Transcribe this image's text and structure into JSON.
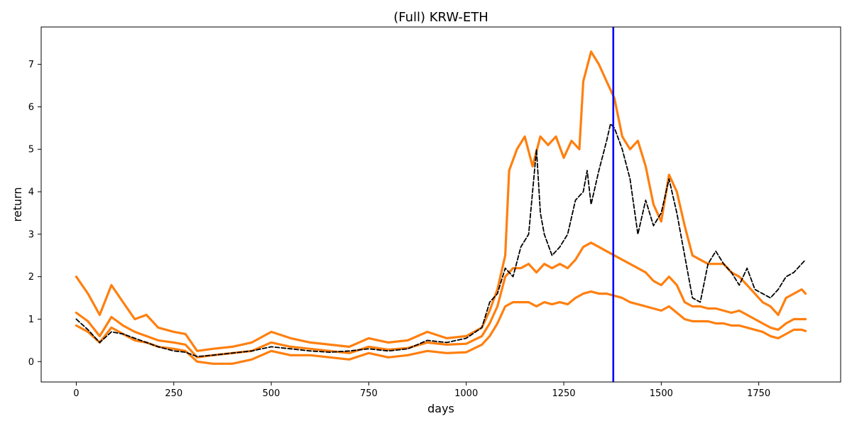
{
  "chart_data": {
    "type": "line",
    "title": "(Full) KRW-ETH",
    "xlabel": "days",
    "ylabel": "return",
    "xlim": [
      -90,
      1960
    ],
    "ylim": [
      -0.48,
      7.88
    ],
    "xticks": [
      0,
      250,
      500,
      750,
      1000,
      1250,
      1500,
      1750
    ],
    "yticks": [
      0,
      1,
      2,
      3,
      4,
      5,
      6,
      7
    ],
    "grid": false,
    "vline": {
      "x": 1377,
      "color": "#0000ff"
    },
    "colors": {
      "actual": "#000000",
      "band": "#ff7f0e"
    },
    "series": [
      {
        "style": "dashed",
        "color": "#000000",
        "x": [
          0,
          30,
          60,
          90,
          120,
          150,
          180,
          210,
          250,
          280,
          310,
          350,
          400,
          450,
          500,
          550,
          600,
          650,
          700,
          750,
          800,
          850,
          900,
          950,
          1000,
          1040,
          1060,
          1080,
          1100,
          1120,
          1140,
          1160,
          1180,
          1190,
          1200,
          1220,
          1240,
          1260,
          1280,
          1300,
          1310,
          1320,
          1340,
          1360,
          1370,
          1380,
          1400,
          1420,
          1440,
          1460,
          1480,
          1500,
          1520,
          1540,
          1560,
          1580,
          1600,
          1620,
          1640,
          1660,
          1680,
          1700,
          1720,
          1740,
          1760,
          1780,
          1800,
          1820,
          1840,
          1860,
          1870
        ],
        "y": [
          1.0,
          0.75,
          0.45,
          0.7,
          0.65,
          0.55,
          0.45,
          0.35,
          0.25,
          0.22,
          0.12,
          0.15,
          0.2,
          0.25,
          0.35,
          0.3,
          0.25,
          0.22,
          0.25,
          0.3,
          0.25,
          0.3,
          0.5,
          0.45,
          0.55,
          0.8,
          1.4,
          1.6,
          2.2,
          2.0,
          2.7,
          3.0,
          5.0,
          3.5,
          3.0,
          2.5,
          2.7,
          3.0,
          3.8,
          4.0,
          4.5,
          3.7,
          4.5,
          5.2,
          5.6,
          5.5,
          5.0,
          4.3,
          3.0,
          3.8,
          3.2,
          3.5,
          4.3,
          3.5,
          2.5,
          1.5,
          1.4,
          2.3,
          2.6,
          2.3,
          2.1,
          1.8,
          2.2,
          1.7,
          1.6,
          1.5,
          1.7,
          2.0,
          2.1,
          2.3,
          2.4
        ]
      },
      {
        "style": "solid",
        "color": "#ff7f0e",
        "x": [
          0,
          30,
          60,
          90,
          120,
          150,
          180,
          210,
          250,
          280,
          310,
          350,
          400,
          450,
          500,
          550,
          600,
          650,
          700,
          750,
          800,
          850,
          900,
          950,
          1000,
          1040,
          1060,
          1080,
          1100,
          1110,
          1130,
          1150,
          1170,
          1190,
          1210,
          1230,
          1250,
          1270,
          1290,
          1300,
          1320,
          1340,
          1360,
          1380,
          1400,
          1420,
          1440,
          1460,
          1480,
          1500,
          1520,
          1540,
          1560,
          1580,
          1600,
          1620,
          1640,
          1660,
          1680,
          1700,
          1720,
          1740,
          1760,
          1780,
          1800,
          1820,
          1840,
          1860,
          1870
        ],
        "y": [
          2.0,
          1.6,
          1.1,
          1.8,
          1.4,
          1.0,
          1.1,
          0.8,
          0.7,
          0.65,
          0.25,
          0.3,
          0.35,
          0.45,
          0.7,
          0.55,
          0.45,
          0.4,
          0.35,
          0.55,
          0.45,
          0.5,
          0.7,
          0.55,
          0.6,
          0.8,
          1.2,
          1.7,
          2.5,
          4.5,
          5.0,
          5.3,
          4.6,
          5.3,
          5.1,
          5.3,
          4.8,
          5.2,
          5.0,
          6.6,
          7.3,
          7.0,
          6.6,
          6.2,
          5.3,
          5.0,
          5.2,
          4.6,
          3.7,
          3.3,
          4.4,
          4.0,
          3.2,
          2.5,
          2.4,
          2.3,
          2.3,
          2.3,
          2.1,
          2.0,
          1.8,
          1.6,
          1.4,
          1.3,
          1.1,
          1.5,
          1.6,
          1.7,
          1.6
        ]
      },
      {
        "style": "solid",
        "color": "#ff7f0e",
        "x": [
          0,
          30,
          60,
          90,
          120,
          150,
          180,
          210,
          250,
          280,
          310,
          350,
          400,
          450,
          500,
          550,
          600,
          650,
          700,
          750,
          800,
          850,
          900,
          950,
          1000,
          1040,
          1060,
          1080,
          1100,
          1120,
          1140,
          1160,
          1180,
          1200,
          1220,
          1240,
          1260,
          1280,
          1300,
          1320,
          1340,
          1360,
          1380,
          1400,
          1420,
          1440,
          1460,
          1480,
          1500,
          1520,
          1540,
          1560,
          1580,
          1600,
          1620,
          1640,
          1660,
          1680,
          1700,
          1720,
          1740,
          1760,
          1780,
          1800,
          1820,
          1840,
          1860,
          1870
        ],
        "y": [
          1.15,
          0.95,
          0.6,
          1.05,
          0.85,
          0.7,
          0.6,
          0.5,
          0.45,
          0.4,
          0.1,
          0.15,
          0.2,
          0.25,
          0.45,
          0.35,
          0.3,
          0.25,
          0.2,
          0.35,
          0.28,
          0.32,
          0.45,
          0.4,
          0.42,
          0.6,
          0.9,
          1.3,
          2.0,
          2.2,
          2.2,
          2.3,
          2.1,
          2.3,
          2.2,
          2.3,
          2.2,
          2.4,
          2.7,
          2.8,
          2.7,
          2.6,
          2.5,
          2.4,
          2.3,
          2.2,
          2.1,
          1.9,
          1.8,
          2.0,
          1.8,
          1.4,
          1.3,
          1.3,
          1.25,
          1.25,
          1.2,
          1.15,
          1.2,
          1.1,
          1.0,
          0.9,
          0.8,
          0.75,
          0.9,
          1.0,
          1.0,
          1.0
        ]
      },
      {
        "style": "solid",
        "color": "#ff7f0e",
        "x": [
          0,
          30,
          60,
          90,
          120,
          150,
          180,
          210,
          250,
          280,
          310,
          350,
          400,
          450,
          500,
          550,
          600,
          650,
          700,
          750,
          800,
          850,
          900,
          950,
          1000,
          1040,
          1060,
          1080,
          1100,
          1120,
          1140,
          1160,
          1180,
          1200,
          1220,
          1240,
          1260,
          1280,
          1300,
          1320,
          1340,
          1360,
          1380,
          1400,
          1420,
          1440,
          1460,
          1480,
          1500,
          1520,
          1540,
          1560,
          1580,
          1600,
          1620,
          1640,
          1660,
          1680,
          1700,
          1720,
          1740,
          1760,
          1780,
          1800,
          1820,
          1840,
          1860,
          1870
        ],
        "y": [
          0.85,
          0.7,
          0.45,
          0.8,
          0.65,
          0.5,
          0.45,
          0.35,
          0.3,
          0.25,
          0.0,
          -0.05,
          -0.05,
          0.05,
          0.25,
          0.15,
          0.15,
          0.1,
          0.05,
          0.2,
          0.1,
          0.15,
          0.25,
          0.2,
          0.22,
          0.4,
          0.6,
          0.9,
          1.3,
          1.4,
          1.4,
          1.4,
          1.3,
          1.4,
          1.35,
          1.4,
          1.35,
          1.5,
          1.6,
          1.65,
          1.6,
          1.6,
          1.55,
          1.5,
          1.4,
          1.35,
          1.3,
          1.25,
          1.2,
          1.3,
          1.15,
          1.0,
          0.95,
          0.95,
          0.95,
          0.9,
          0.9,
          0.85,
          0.85,
          0.8,
          0.75,
          0.7,
          0.6,
          0.55,
          0.65,
          0.75,
          0.75,
          0.72
        ]
      }
    ]
  }
}
